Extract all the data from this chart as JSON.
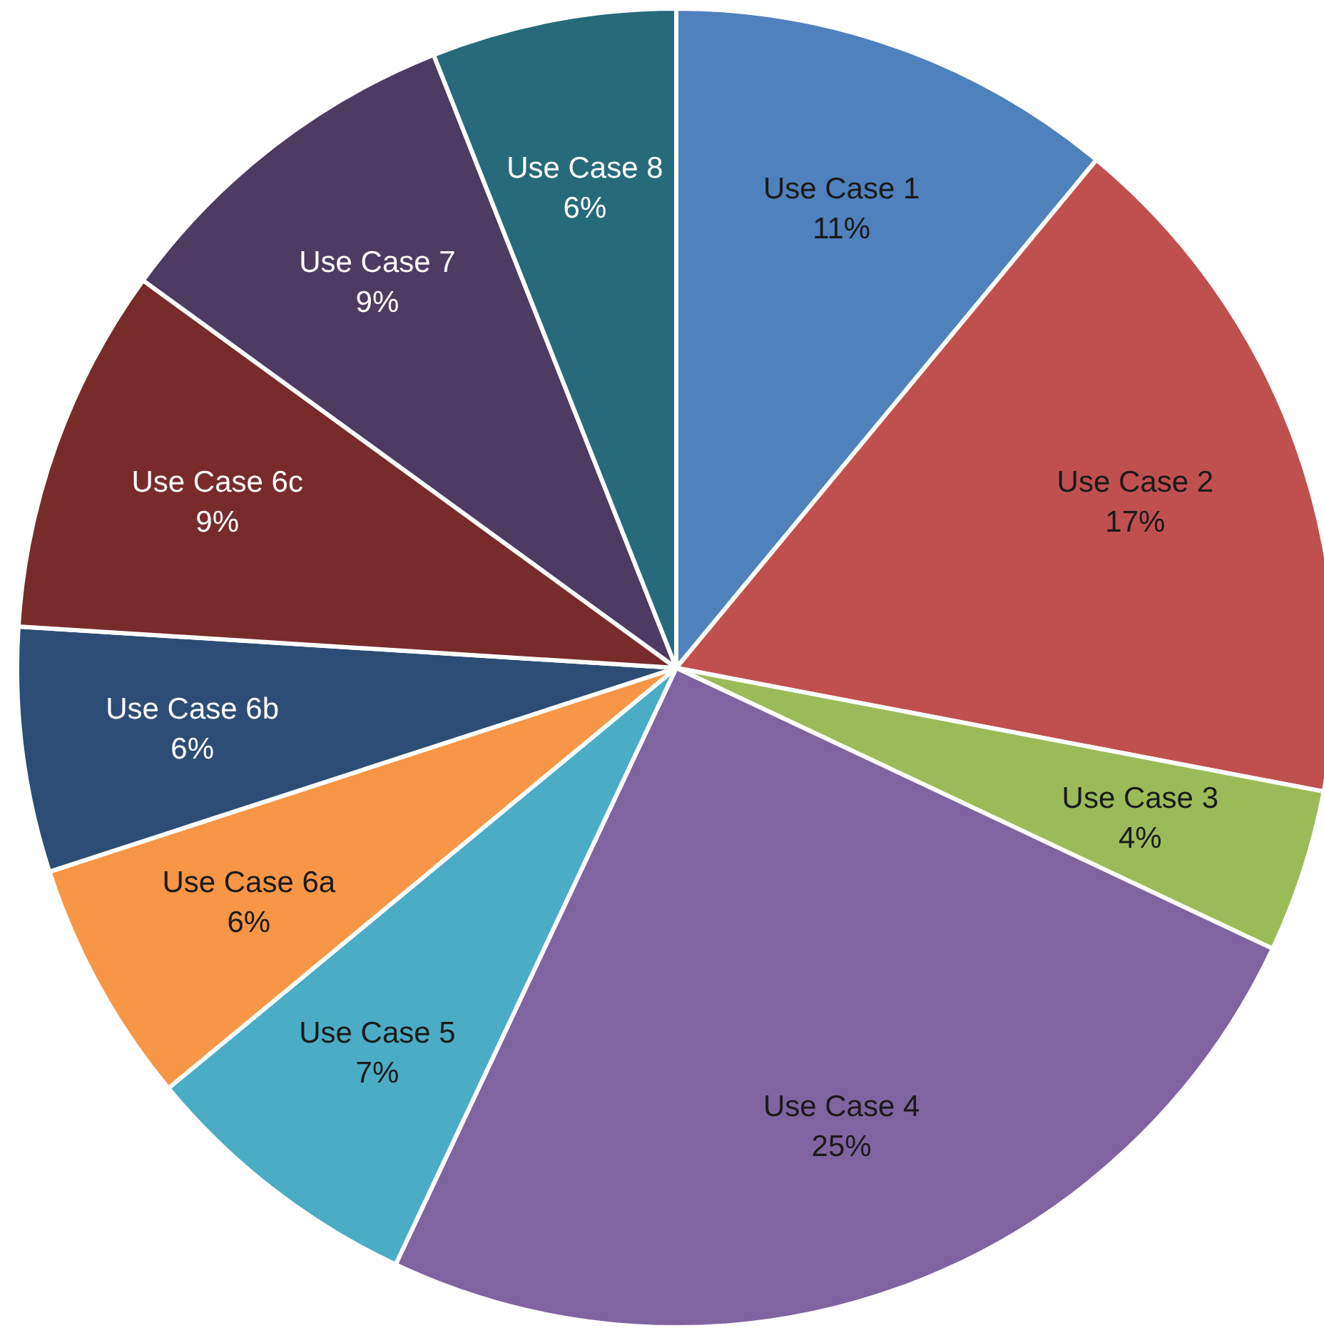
{
  "chart_data": {
    "type": "pie",
    "categories": [
      "Use Case 1",
      "Use Case 2",
      "Use Case 3",
      "Use Case 4",
      "Use Case 5",
      "Use Case 6a",
      "Use Case 6b",
      "Use Case 6c",
      "Use Case 7",
      "Use Case 8"
    ],
    "values": [
      11,
      17,
      4,
      25,
      7,
      6,
      6,
      9,
      9,
      6
    ],
    "value_labels": [
      "11%",
      "17%",
      "4%",
      "25%",
      "7%",
      "6%",
      "6%",
      "9%",
      "9%",
      "6%"
    ],
    "colors": [
      "#4f81bd",
      "#c0504d",
      "#9bbb59",
      "#8064a2",
      "#4bacc6",
      "#f79646",
      "#2c4d75",
      "#772c2a",
      "#4d3b62",
      "#276a7c"
    ],
    "legend": false
  }
}
